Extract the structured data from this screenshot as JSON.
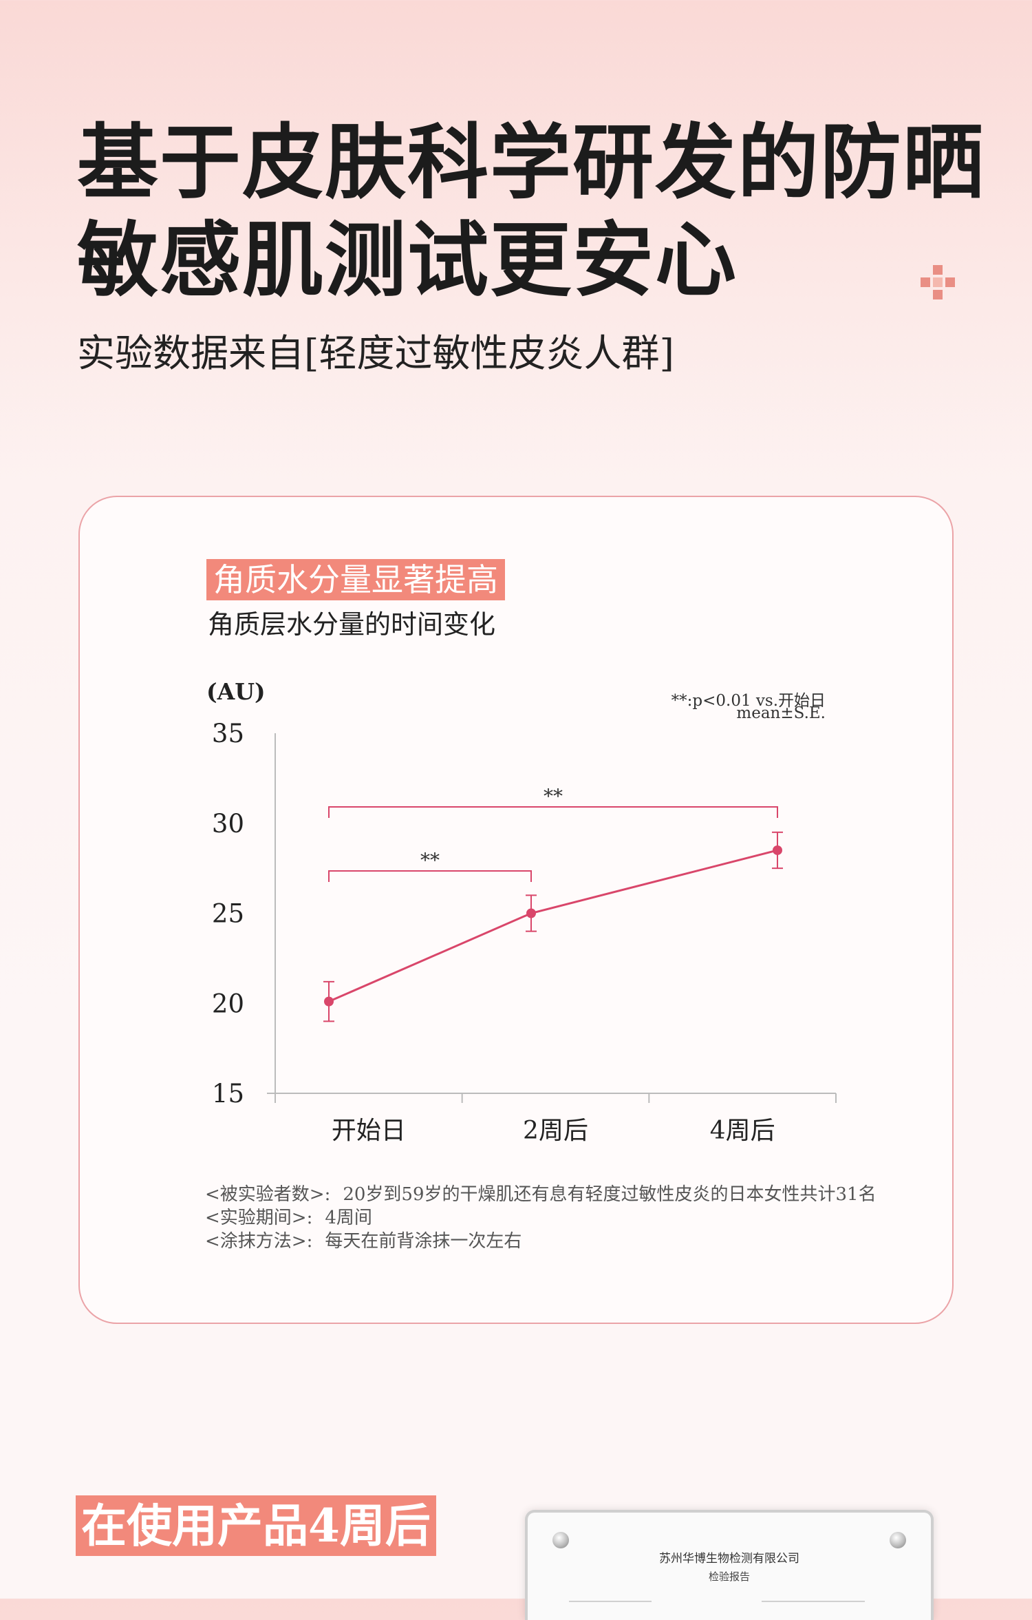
{
  "headline": {
    "line1": "基于皮肤科学研发的防晒",
    "line2": "敏感肌测试更安心"
  },
  "subheadline": "实验数据来自[轻度过敏性皮炎人群]",
  "card": {
    "tag": "角质水分量显著提高",
    "chart_title": "角质层水分量的时间变化",
    "note_line1": "**:p<0.01  vs.开始日",
    "note_line2": "mean±S.E.",
    "footnotes": [
      {
        "label": "<被实验者数>:",
        "value": "20岁到59岁的干燥肌还有息有轻度过敏性皮炎的日本女性共计31名"
      },
      {
        "label": "<实验期间>:",
        "value": "4周间"
      },
      {
        "label": "<涂抹方法>:",
        "value": "每天在前背涂抹一次左右"
      }
    ]
  },
  "chart_data": {
    "type": "line",
    "title": "角质层水分量的时间变化",
    "ylabel": "(AU)",
    "xlabel": "",
    "categories": [
      "开始日",
      "2周后",
      "4周后"
    ],
    "series": [
      {
        "values": [
          20.1,
          25.0,
          28.5
        ],
        "error": [
          1.1,
          1.0,
          1.0
        ]
      }
    ],
    "yticks": [
      15,
      20,
      25,
      30,
      35
    ],
    "ylim": [
      15,
      35
    ],
    "significance": [
      {
        "from": "开始日",
        "to": "2周后",
        "label": "**"
      },
      {
        "from": "开始日",
        "to": "4周后",
        "label": "**"
      }
    ],
    "grid": false,
    "line_color": "#d9466a"
  },
  "bottom": {
    "banner": "在使用产品4周后",
    "report_org": "苏州华博生物检测有限公司",
    "report_type": "检验报告"
  },
  "colors": {
    "accent": "#f2897b",
    "card_border": "#eba3a7",
    "line": "#d9466a"
  }
}
